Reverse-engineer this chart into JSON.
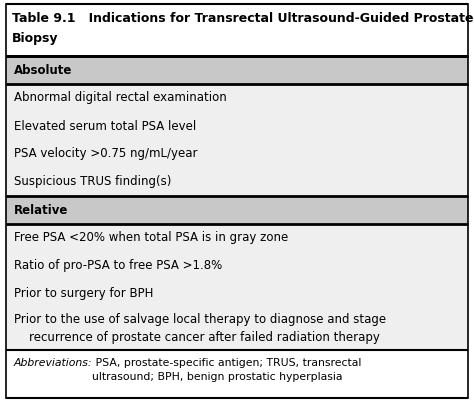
{
  "title_line1": "Table 9.1   Indications for Transrectal Ultrasound-Guided Prostate",
  "title_line2": "Biopsy",
  "title_fontsize": 9.0,
  "body_fontsize": 8.5,
  "header_fontsize": 8.5,
  "header_bg": "#c8c8c8",
  "body_bg": "#efefef",
  "title_bg": "#ffffff",
  "footnote_bg": "#ffffff",
  "sections": [
    {
      "label": "Absolute",
      "is_header": true
    },
    {
      "label": "Abnormal digital rectal examination",
      "is_header": false
    },
    {
      "label": "Elevated serum total PSA level",
      "is_header": false
    },
    {
      "label": "PSA velocity >0.75 ng/mL/year",
      "is_header": false
    },
    {
      "label": "Suspicious TRUS finding(s)",
      "is_header": false
    },
    {
      "label": "Relative",
      "is_header": true
    },
    {
      "label": "Free PSA <20% when total PSA is in gray zone",
      "is_header": false
    },
    {
      "label": "Ratio of pro-PSA to free PSA >1.8%",
      "is_header": false
    },
    {
      "label": "Prior to surgery for BPH",
      "is_header": false
    },
    {
      "label": "Prior to the use of salvage local therapy to diagnose and stage\n    recurrence of prostate cancer after failed radiation therapy",
      "is_header": false
    }
  ],
  "footnote_italic": "Abbreviations:",
  "footnote_normal": " PSA, prostate-specific antigen; TRUS, transrectal\nultrasound; BPH, benign prostatic hyperplasia"
}
